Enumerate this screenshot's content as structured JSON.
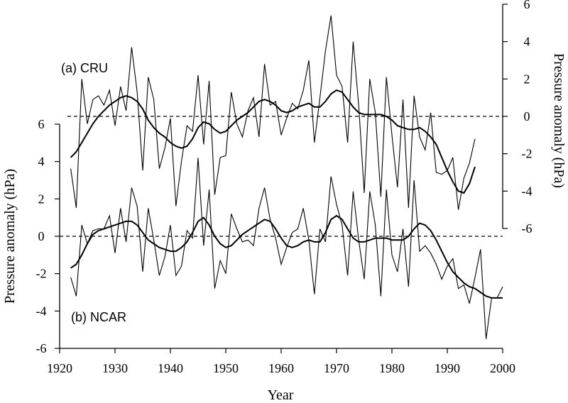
{
  "chart_data": [
    {
      "type": "line",
      "panel_label": "(a) CRU",
      "ylabel": "Pressure anomaly (hPa)",
      "yaxis_side": "right",
      "ylim": [
        -6,
        6
      ],
      "yticks": [
        -6,
        -4,
        -2,
        0,
        2,
        4,
        6
      ],
      "xlim": [
        1920,
        2000
      ],
      "zero_line": "dashed",
      "series": [
        {
          "style": "thin",
          "x": [
            1922,
            1923,
            1924,
            1925,
            1926,
            1927,
            1928,
            1929,
            1930,
            1931,
            1932,
            1933,
            1934,
            1935,
            1936,
            1937,
            1938,
            1939,
            1940,
            1941,
            1942,
            1943,
            1944,
            1945,
            1946,
            1947,
            1948,
            1949,
            1950,
            1951,
            1952,
            1953,
            1954,
            1955,
            1956,
            1957,
            1958,
            1959,
            1960,
            1961,
            1962,
            1963,
            1964,
            1965,
            1966,
            1967,
            1968,
            1969,
            1970,
            1971,
            1972,
            1973,
            1974,
            1975,
            1976,
            1977,
            1978,
            1979,
            1980,
            1981,
            1982,
            1983,
            1984,
            1985,
            1986,
            1987,
            1988,
            1989,
            1990,
            1991,
            1992,
            1993,
            1994,
            1995
          ],
          "y": [
            -2.8,
            -4.9,
            2.0,
            -0.4,
            0.9,
            1.1,
            0.6,
            1.4,
            -0.5,
            1.6,
            0.3,
            3.7,
            1.3,
            -2.9,
            2.1,
            0.9,
            -2.8,
            -1.7,
            -0.1,
            -4.8,
            -2.4,
            -0.5,
            -0.8,
            2.2,
            -1.5,
            1.9,
            -4.2,
            -2.2,
            -2.1,
            1.3,
            -0.4,
            -1.1,
            0.3,
            1.0,
            -1.1,
            2.8,
            0.6,
            0.8,
            -1.0,
            -0.1,
            0.7,
            0.4,
            1.4,
            3.0,
            -1.4,
            1.0,
            3.5,
            5.4,
            2.2,
            1.6,
            -1.4,
            4.0,
            0.6,
            -4.1,
            2.0,
            0.2,
            -4.3,
            2.1,
            -1.0,
            -3.8,
            0.9,
            -4.9,
            1.1,
            -1.1,
            -1.8,
            0.2,
            -3.0,
            -3.1,
            -2.9,
            -2.2,
            -5.0,
            -3.3,
            -2.5,
            -1.2
          ]
        },
        {
          "style": "smooth",
          "x": [
            1922,
            1923,
            1924,
            1925,
            1926,
            1927,
            1928,
            1929,
            1930,
            1931,
            1932,
            1933,
            1934,
            1935,
            1936,
            1937,
            1938,
            1939,
            1940,
            1941,
            1942,
            1943,
            1944,
            1945,
            1946,
            1947,
            1948,
            1949,
            1950,
            1951,
            1952,
            1953,
            1954,
            1955,
            1956,
            1957,
            1958,
            1959,
            1960,
            1961,
            1962,
            1963,
            1964,
            1965,
            1966,
            1967,
            1968,
            1969,
            1970,
            1971,
            1972,
            1973,
            1974,
            1975,
            1976,
            1977,
            1978,
            1979,
            1980,
            1981,
            1982,
            1983,
            1984,
            1985,
            1986,
            1987,
            1988,
            1989,
            1990,
            1991,
            1992,
            1993,
            1994,
            1995
          ],
          "y": [
            -2.2,
            -1.9,
            -1.4,
            -0.9,
            -0.4,
            0.0,
            0.3,
            0.6,
            0.8,
            1.0,
            1.1,
            1.0,
            0.8,
            0.4,
            -0.2,
            -0.6,
            -0.9,
            -1.1,
            -1.4,
            -1.6,
            -1.7,
            -1.6,
            -1.2,
            -0.6,
            -0.3,
            -0.4,
            -0.7,
            -0.9,
            -0.8,
            -0.5,
            -0.2,
            0.0,
            0.2,
            0.5,
            0.8,
            0.9,
            0.8,
            0.6,
            0.3,
            0.2,
            0.3,
            0.5,
            0.6,
            0.7,
            0.5,
            0.5,
            0.8,
            1.2,
            1.4,
            1.3,
            0.9,
            0.5,
            0.2,
            0.1,
            0.1,
            0.1,
            0.1,
            0.0,
            -0.2,
            -0.5,
            -0.6,
            -0.7,
            -0.7,
            -0.6,
            -0.8,
            -1.1,
            -1.5,
            -2.2,
            -2.9,
            -3.5,
            -4.0,
            -4.1,
            -3.6,
            -2.7
          ]
        }
      ]
    },
    {
      "type": "line",
      "panel_label": "(b) NCAR",
      "ylabel": "Pressure anomaly (hPa)",
      "yaxis_side": "left",
      "ylim": [
        -6,
        6
      ],
      "yticks": [
        -6,
        -4,
        -2,
        0,
        2,
        4,
        6
      ],
      "xlim": [
        1920,
        2000
      ],
      "xticks": [
        1920,
        1930,
        1940,
        1950,
        1960,
        1970,
        1980,
        1990,
        2000
      ],
      "xlabel": "Year",
      "zero_line": "dashed",
      "series": [
        {
          "style": "thin",
          "x": [
            1922,
            1923,
            1924,
            1925,
            1926,
            1927,
            1928,
            1929,
            1930,
            1931,
            1932,
            1933,
            1934,
            1935,
            1936,
            1937,
            1938,
            1939,
            1940,
            1941,
            1942,
            1943,
            1944,
            1945,
            1946,
            1947,
            1948,
            1949,
            1950,
            1951,
            1952,
            1953,
            1954,
            1955,
            1956,
            1957,
            1958,
            1959,
            1960,
            1961,
            1962,
            1963,
            1964,
            1965,
            1966,
            1967,
            1968,
            1969,
            1970,
            1971,
            1972,
            1973,
            1974,
            1975,
            1976,
            1977,
            1978,
            1979,
            1980,
            1981,
            1982,
            1983,
            1984,
            1985,
            1986,
            1987,
            1988,
            1989,
            1990,
            1991,
            1992,
            1993,
            1994,
            1995,
            1996,
            1997,
            1998,
            1999,
            2000
          ],
          "y": [
            -2.2,
            -3.2,
            0.6,
            -0.4,
            0.3,
            0.4,
            0.4,
            1.1,
            -0.9,
            1.5,
            -0.3,
            2.6,
            1.6,
            -1.9,
            1.5,
            -0.2,
            -2.1,
            -1.1,
            0.6,
            -2.1,
            -1.6,
            0.3,
            -0.1,
            4.2,
            -0.5,
            2.5,
            -2.8,
            -1.3,
            -2.0,
            1.2,
            0.4,
            -0.3,
            -0.2,
            -0.5,
            1.5,
            2.6,
            0.9,
            -0.1,
            -1.5,
            -0.6,
            0.2,
            0.4,
            1.5,
            -0.2,
            -3.1,
            0.4,
            -0.3,
            3.2,
            1.7,
            0.6,
            -2.1,
            2.4,
            -0.2,
            -2.3,
            2.4,
            0.6,
            -3.2,
            2.5,
            -1.0,
            -1.9,
            0.4,
            -2.7,
            3.0,
            -0.8,
            -0.5,
            -0.9,
            -1.5,
            -2.3,
            -1.6,
            -1.2,
            -2.8,
            -2.6,
            -3.6,
            -2.2,
            -0.7,
            -5.5,
            -3.3,
            -3.3,
            -2.7
          ]
        },
        {
          "style": "smooth",
          "x": [
            1922,
            1923,
            1924,
            1925,
            1926,
            1927,
            1928,
            1929,
            1930,
            1931,
            1932,
            1933,
            1934,
            1935,
            1936,
            1937,
            1938,
            1939,
            1940,
            1941,
            1942,
            1943,
            1944,
            1945,
            1946,
            1947,
            1948,
            1949,
            1950,
            1951,
            1952,
            1953,
            1954,
            1955,
            1956,
            1957,
            1958,
            1959,
            1960,
            1961,
            1962,
            1963,
            1964,
            1965,
            1966,
            1967,
            1968,
            1969,
            1970,
            1971,
            1972,
            1973,
            1974,
            1975,
            1976,
            1977,
            1978,
            1979,
            1980,
            1981,
            1982,
            1983,
            1984,
            1985,
            1986,
            1987,
            1988,
            1989,
            1990,
            1991,
            1992,
            1993,
            1994,
            1995,
            1996,
            1997,
            1998,
            1999,
            2000
          ],
          "y": [
            -1.7,
            -1.5,
            -1.0,
            -0.4,
            0.1,
            0.3,
            0.4,
            0.5,
            0.6,
            0.7,
            0.8,
            0.8,
            0.6,
            0.2,
            -0.2,
            -0.4,
            -0.6,
            -0.7,
            -0.8,
            -0.8,
            -0.6,
            -0.3,
            0.2,
            0.8,
            1.0,
            0.6,
            0.0,
            -0.4,
            -0.6,
            -0.5,
            -0.2,
            0.1,
            0.3,
            0.5,
            0.7,
            0.9,
            0.8,
            0.4,
            -0.1,
            -0.5,
            -0.6,
            -0.5,
            -0.3,
            -0.2,
            -0.3,
            -0.3,
            0.2,
            0.9,
            1.1,
            0.9,
            0.4,
            -0.1,
            -0.3,
            -0.3,
            -0.2,
            -0.1,
            -0.1,
            -0.1,
            -0.2,
            -0.2,
            -0.2,
            0.0,
            0.4,
            0.7,
            0.6,
            0.3,
            -0.2,
            -0.8,
            -1.4,
            -1.9,
            -2.2,
            -2.5,
            -2.7,
            -2.8,
            -3.0,
            -3.2,
            -3.3,
            -3.3,
            -3.3
          ]
        }
      ]
    }
  ]
}
